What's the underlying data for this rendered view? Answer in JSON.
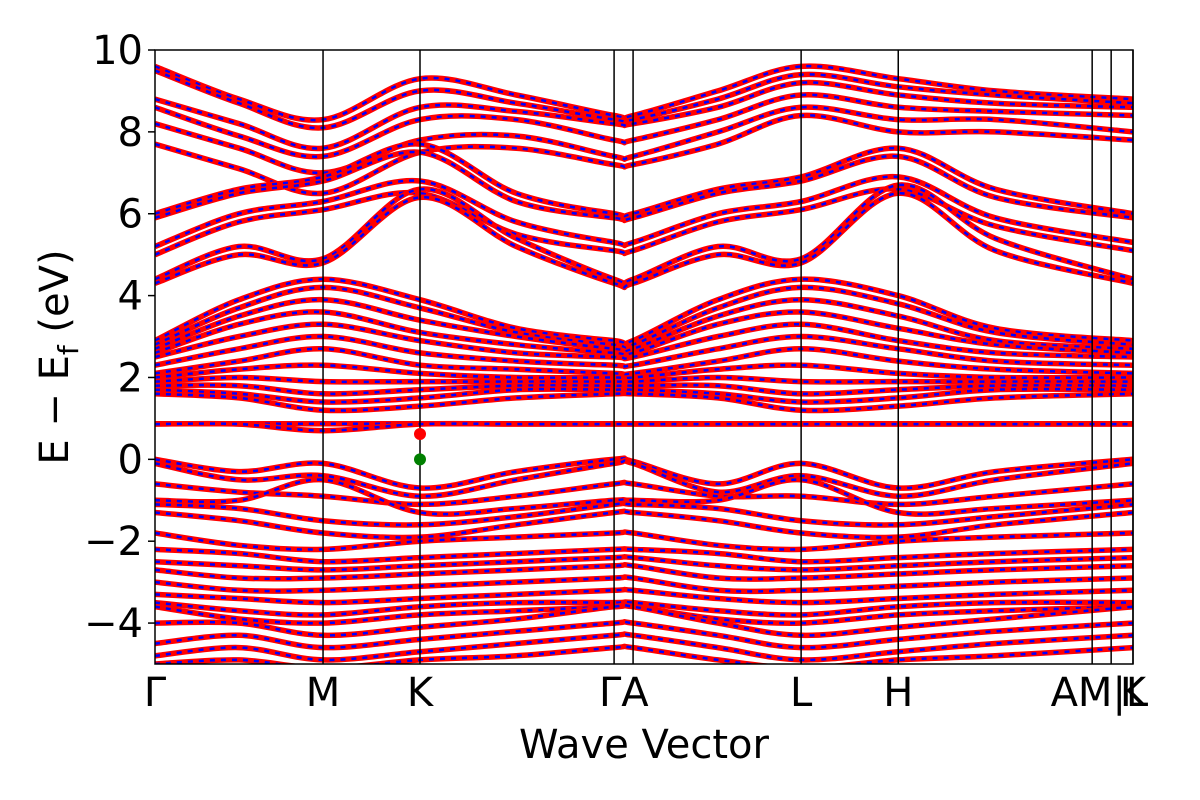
{
  "chart_data": {
    "type": "line",
    "title": "",
    "xlabel": "Wave Vector",
    "ylabel_parts": {
      "main": "E − E",
      "sub": "f",
      "unit": " (eV)"
    },
    "ylim": [
      -5,
      10
    ],
    "yticks": [
      {
        "value": -4,
        "label": "−4"
      },
      {
        "value": -2,
        "label": "−2"
      },
      {
        "value": 0,
        "label": "0"
      },
      {
        "value": 2,
        "label": "2"
      },
      {
        "value": 4,
        "label": "4"
      },
      {
        "value": 6,
        "label": "6"
      },
      {
        "value": 8,
        "label": "8"
      },
      {
        "value": 10,
        "label": "10"
      }
    ],
    "xlim": [
      0,
      5.82
    ],
    "kpoints": [
      {
        "label": "Γ",
        "x": 0.0
      },
      {
        "label": "M",
        "x": 1.0
      },
      {
        "label": "K",
        "x": 1.577
      },
      {
        "label": "Γ",
        "x": 2.732
      },
      {
        "label": "A",
        "x": 2.845
      },
      {
        "label": "L",
        "x": 3.845
      },
      {
        "label": "H",
        "x": 4.423
      },
      {
        "label": "A",
        "x": 5.577
      },
      {
        "label": "M",
        "x": 5.577
      },
      {
        "label": "L",
        "x": 5.69
      },
      {
        "label": "K",
        "x": 5.82
      }
    ],
    "kpoint_label_text": [
      {
        "text": "Γ",
        "x": 0.0
      },
      {
        "text": "M",
        "x": 1.0
      },
      {
        "text": "K",
        "x": 1.577
      },
      {
        "text": "ΓA",
        "x": 2.79
      },
      {
        "text": "L",
        "x": 3.845
      },
      {
        "text": "H",
        "x": 4.423
      },
      {
        "text": "AM|L",
        "x": 5.62
      },
      {
        "text": "K",
        "x": 5.82
      }
    ],
    "vlines": [
      1.0,
      1.577,
      2.732,
      2.845,
      3.845,
      4.423,
      5.577,
      5.69,
      5.82
    ],
    "series": [
      {
        "style": "spin-up",
        "color": "#ff0000"
      },
      {
        "style": "spin-down",
        "color": "#0000ff"
      }
    ],
    "bands": [
      [
        9.6,
        8.8,
        8.3,
        9.3,
        8.9,
        8.4,
        8.4,
        9.0,
        9.6,
        9.3,
        9.0,
        8.8
      ],
      [
        9.5,
        8.7,
        8.1,
        9.0,
        8.7,
        8.3,
        8.3,
        8.8,
        9.4,
        9.1,
        8.9,
        8.7
      ],
      [
        8.8,
        8.2,
        7.6,
        8.6,
        8.5,
        8.2,
        8.2,
        8.6,
        9.2,
        8.9,
        8.7,
        8.6
      ],
      [
        8.6,
        7.9,
        7.4,
        8.3,
        8.3,
        7.8,
        7.8,
        8.3,
        8.9,
        8.6,
        8.5,
        8.4
      ],
      [
        8.2,
        7.6,
        7.0,
        7.8,
        7.9,
        7.4,
        7.4,
        8.0,
        8.6,
        8.3,
        8.3,
        8.0
      ],
      [
        7.7,
        7.1,
        6.5,
        7.5,
        7.6,
        7.2,
        7.2,
        7.7,
        8.4,
        8.0,
        8.0,
        7.8
      ],
      [
        6.0,
        6.6,
        6.9,
        7.7,
        6.5,
        6.0,
        6.0,
        6.6,
        6.9,
        7.6,
        6.6,
        6.0
      ],
      [
        5.9,
        6.5,
        6.8,
        7.5,
        6.3,
        5.9,
        5.9,
        6.5,
        6.8,
        7.4,
        6.4,
        5.9
      ],
      [
        5.2,
        6.0,
        6.3,
        6.8,
        5.8,
        5.3,
        5.3,
        6.0,
        6.3,
        6.9,
        5.9,
        5.3
      ],
      [
        5.0,
        5.8,
        6.1,
        6.5,
        5.5,
        5.1,
        5.1,
        5.8,
        6.1,
        6.6,
        5.7,
        5.1
      ],
      [
        4.4,
        5.2,
        4.9,
        6.6,
        5.4,
        4.4,
        4.4,
        5.2,
        4.9,
        6.7,
        5.4,
        4.4
      ],
      [
        4.3,
        5.0,
        4.8,
        6.4,
        5.2,
        4.3,
        4.3,
        5.0,
        4.8,
        6.5,
        5.1,
        4.3
      ],
      [
        2.9,
        3.9,
        4.4,
        3.9,
        3.2,
        2.9,
        2.9,
        3.9,
        4.4,
        4.0,
        3.2,
        2.9
      ],
      [
        2.8,
        3.7,
        4.2,
        3.7,
        3.1,
        2.8,
        2.8,
        3.7,
        4.2,
        3.8,
        3.1,
        2.8
      ],
      [
        2.7,
        3.5,
        3.9,
        3.4,
        3.0,
        2.7,
        2.7,
        3.5,
        3.9,
        3.5,
        2.9,
        2.7
      ],
      [
        2.6,
        3.3,
        3.6,
        3.1,
        2.8,
        2.6,
        2.6,
        3.3,
        3.6,
        3.2,
        2.8,
        2.6
      ],
      [
        2.5,
        3.0,
        3.3,
        2.9,
        2.6,
        2.5,
        2.5,
        3.0,
        3.3,
        2.9,
        2.6,
        2.5
      ],
      [
        2.3,
        2.7,
        3.0,
        2.6,
        2.4,
        2.3,
        2.3,
        2.7,
        3.0,
        2.7,
        2.4,
        2.3
      ],
      [
        2.1,
        2.4,
        2.7,
        2.3,
        2.2,
        2.1,
        2.1,
        2.4,
        2.7,
        2.4,
        2.2,
        2.1
      ],
      [
        2.0,
        2.2,
        2.3,
        2.1,
        2.0,
        2.0,
        2.0,
        2.2,
        2.3,
        2.1,
        2.0,
        2.0
      ],
      [
        1.9,
        2.0,
        1.9,
        1.9,
        1.9,
        1.9,
        1.9,
        2.0,
        1.9,
        1.9,
        1.9,
        1.9
      ],
      [
        1.8,
        1.8,
        1.6,
        1.7,
        1.8,
        1.8,
        1.8,
        1.8,
        1.6,
        1.7,
        1.8,
        1.8
      ],
      [
        1.7,
        1.6,
        1.4,
        1.5,
        1.7,
        1.7,
        1.7,
        1.6,
        1.4,
        1.5,
        1.7,
        1.7
      ],
      [
        1.6,
        1.5,
        1.2,
        1.3,
        1.5,
        1.6,
        1.6,
        1.5,
        1.2,
        1.3,
        1.5,
        1.6
      ],
      [
        0.87,
        0.87,
        0.87,
        0.87,
        0.87,
        0.87,
        0.87,
        0.87,
        0.87,
        0.87,
        0.87,
        0.87
      ],
      [
        0.86,
        0.86,
        0.7,
        0.86,
        0.86,
        0.86,
        0.86,
        0.86,
        0.86,
        0.86,
        0.86,
        0.86
      ],
      [
        0.0,
        -0.3,
        -0.1,
        -0.7,
        -0.3,
        0.0,
        -0.05,
        -0.6,
        -0.1,
        -0.7,
        -0.3,
        0.0
      ],
      [
        -0.1,
        -0.5,
        -0.4,
        -0.9,
        -0.5,
        -0.1,
        -0.1,
        -0.8,
        -0.4,
        -0.9,
        -0.5,
        -0.1
      ],
      [
        -0.6,
        -0.8,
        -0.9,
        -1.1,
        -0.9,
        -0.6,
        -0.6,
        -0.9,
        -0.9,
        -1.1,
        -0.9,
        -0.6
      ],
      [
        -1.0,
        -1.0,
        -0.5,
        -1.3,
        -1.2,
        -1.0,
        -1.0,
        -1.0,
        -0.5,
        -1.3,
        -1.2,
        -1.0
      ],
      [
        -1.1,
        -1.2,
        -1.5,
        -1.6,
        -1.4,
        -1.1,
        -1.1,
        -1.2,
        -1.5,
        -1.6,
        -1.4,
        -1.1
      ],
      [
        -1.3,
        -1.5,
        -1.8,
        -1.9,
        -1.6,
        -1.3,
        -1.3,
        -1.5,
        -1.8,
        -1.9,
        -1.6,
        -1.3
      ],
      [
        -1.8,
        -2.1,
        -2.2,
        -2.0,
        -1.9,
        -1.8,
        -1.8,
        -2.1,
        -2.2,
        -2.0,
        -1.9,
        -1.8
      ],
      [
        -2.2,
        -2.3,
        -2.5,
        -2.4,
        -2.3,
        -2.2,
        -2.2,
        -2.3,
        -2.5,
        -2.4,
        -2.3,
        -2.2
      ],
      [
        -2.5,
        -2.6,
        -2.7,
        -2.6,
        -2.5,
        -2.4,
        -2.4,
        -2.6,
        -2.7,
        -2.6,
        -2.5,
        -2.4
      ],
      [
        -2.7,
        -2.9,
        -2.9,
        -2.8,
        -2.7,
        -2.6,
        -2.6,
        -2.9,
        -2.9,
        -2.8,
        -2.7,
        -2.6
      ],
      [
        -3.0,
        -3.2,
        -3.2,
        -3.1,
        -3.0,
        -2.9,
        -2.9,
        -3.2,
        -3.2,
        -3.1,
        -3.0,
        -2.9
      ],
      [
        -3.3,
        -3.4,
        -3.5,
        -3.4,
        -3.3,
        -3.2,
        -3.2,
        -3.4,
        -3.5,
        -3.4,
        -3.3,
        -3.2
      ],
      [
        -3.5,
        -3.7,
        -3.8,
        -3.6,
        -3.5,
        -3.5,
        -3.5,
        -3.7,
        -3.8,
        -3.6,
        -3.5,
        -3.5
      ],
      [
        -3.6,
        -3.9,
        -4.0,
        -3.8,
        -3.7,
        -3.6,
        -3.6,
        -3.9,
        -4.0,
        -3.8,
        -3.7,
        -3.6
      ],
      [
        -4.0,
        -4.0,
        -4.3,
        -4.1,
        -3.9,
        -3.6,
        -3.6,
        -4.0,
        -4.3,
        -4.1,
        -3.9,
        -3.6
      ],
      [
        -4.5,
        -4.3,
        -4.6,
        -4.4,
        -4.2,
        -4.0,
        -4.0,
        -4.3,
        -4.6,
        -4.4,
        -4.2,
        -4.0
      ],
      [
        -4.8,
        -4.6,
        -4.9,
        -4.7,
        -4.5,
        -4.3,
        -4.3,
        -4.6,
        -4.9,
        -4.7,
        -4.5,
        -4.3
      ],
      [
        -5.0,
        -4.9,
        -5.1,
        -4.9,
        -4.8,
        -4.6,
        -4.6,
        -4.9,
        -5.1,
        -4.9,
        -4.8,
        -4.6
      ]
    ],
    "band_x": [
      0.0,
      0.5,
      1.0,
      1.577,
      2.15,
      2.732,
      2.845,
      3.35,
      3.845,
      4.423,
      5.0,
      5.82
    ],
    "markers": [
      {
        "name": "cbm",
        "x": 1.577,
        "y": 0.62,
        "color": "#ff0000"
      },
      {
        "name": "vbm",
        "x": 1.577,
        "y": 0.0,
        "color": "#008000"
      }
    ],
    "grid": false,
    "legend": "none"
  }
}
